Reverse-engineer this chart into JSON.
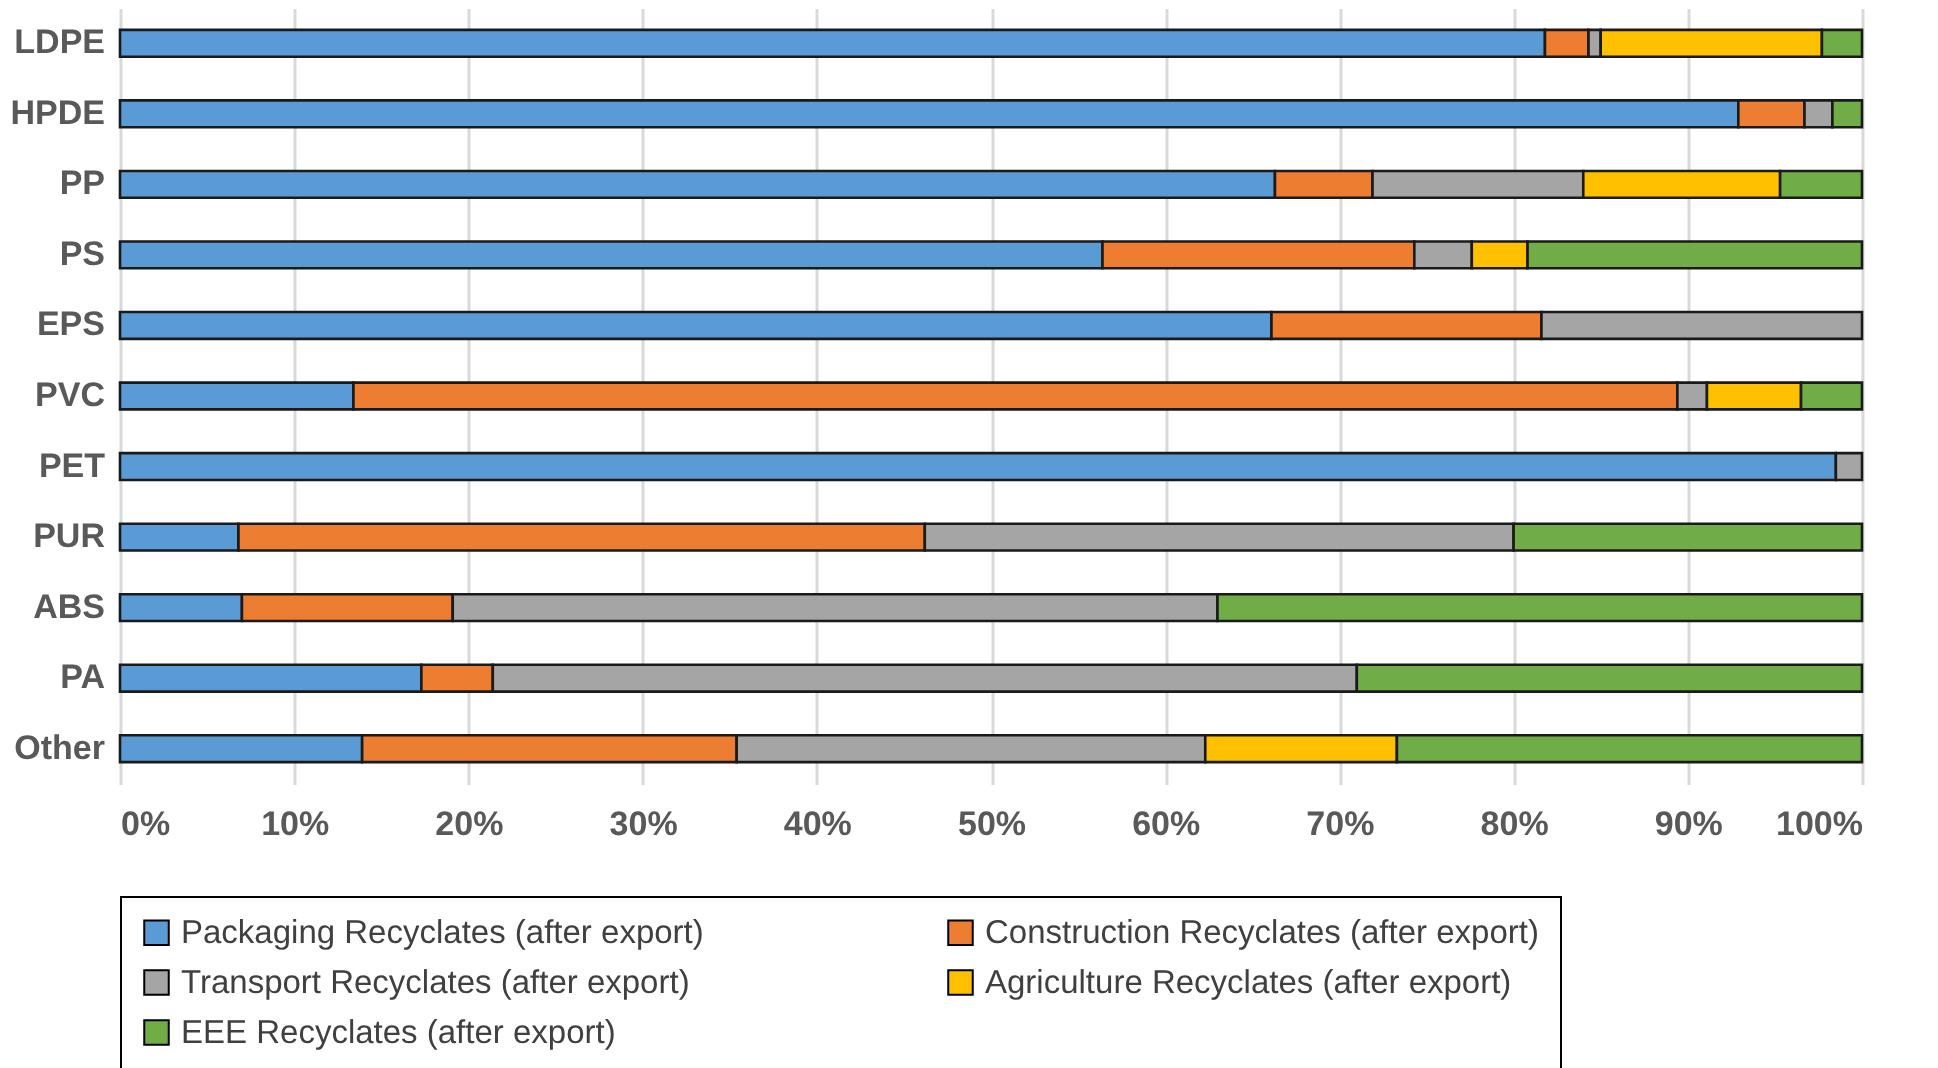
{
  "chart_data": {
    "type": "bar",
    "orientation": "horizontal",
    "stacked": true,
    "grid": "x",
    "legend": "bottom",
    "categories": [
      "LDPE",
      "HPDE",
      "PP",
      "PS",
      "EPS",
      "PVC",
      "PET",
      "PUR",
      "ABS",
      "PA",
      "Other"
    ],
    "xlim": [
      0,
      100
    ],
    "xticks": [
      {
        "value": 0,
        "label": "0%"
      },
      {
        "value": 10,
        "label": "10%"
      },
      {
        "value": 20,
        "label": "20%"
      },
      {
        "value": 30,
        "label": "30%"
      },
      {
        "value": 40,
        "label": "40%"
      },
      {
        "value": 50,
        "label": "50%"
      },
      {
        "value": 60,
        "label": "60%"
      },
      {
        "value": 70,
        "label": "70%"
      },
      {
        "value": 80,
        "label": "80%"
      },
      {
        "value": 90,
        "label": "90%"
      },
      {
        "value": 100,
        "label": "100%"
      }
    ],
    "series": [
      {
        "name": "Packaging Recyclates (after export)",
        "color": "#5b9bd5",
        "values": [
          81.8,
          92.9,
          66.3,
          56.4,
          66.1,
          13.4,
          98.5,
          6.8,
          7.0,
          17.3,
          13.9
        ]
      },
      {
        "name": "Construction Recyclates (after export)",
        "color": "#ed7d31",
        "values": [
          2.5,
          3.8,
          5.6,
          17.9,
          15.5,
          76.0,
          0,
          39.4,
          12.1,
          4.1,
          21.5
        ]
      },
      {
        "name": "Transport Recyclates (after export)",
        "color": "#a5a5a5",
        "values": [
          0.7,
          1.6,
          12.1,
          3.3,
          18.4,
          1.7,
          1.5,
          33.8,
          43.9,
          49.6,
          26.9
        ]
      },
      {
        "name": "Agriculture Recyclates (after export)",
        "color": "#ffc000",
        "values": [
          12.7,
          0,
          11.3,
          3.2,
          0,
          5.4,
          0,
          0,
          0,
          0,
          11.0
        ]
      },
      {
        "name": "EEE Recyclates (after export)",
        "color": "#70ad47",
        "values": [
          2.3,
          1.7,
          4.7,
          19.2,
          0,
          3.5,
          0,
          20.0,
          37.0,
          29.0,
          26.7
        ]
      }
    ]
  }
}
